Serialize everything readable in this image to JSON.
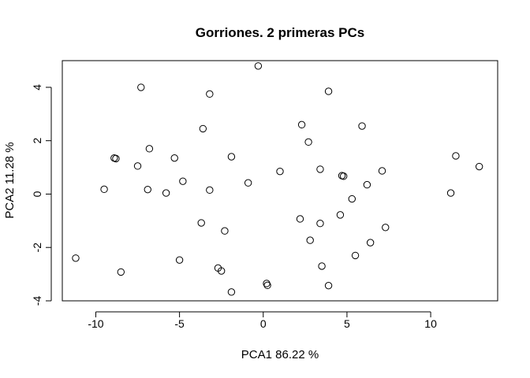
{
  "chart_data": {
    "type": "scatter",
    "title": "Gorriones. 2 primeras PCs",
    "xlabel": "PCA1  86.22 %",
    "ylabel": "PCA2  11.28 %",
    "xlim": [
      -12.0,
      14.0
    ],
    "ylim": [
      -4.0,
      5.0
    ],
    "x_ticks": [
      -10,
      -5,
      0,
      5,
      10
    ],
    "x_tick_labels": [
      "-10",
      "-5",
      "0",
      "5",
      "10"
    ],
    "y_ticks": [
      -4,
      -2,
      0,
      2,
      4
    ],
    "y_tick_labels": [
      "-4",
      "-2",
      "0",
      "2",
      "4"
    ],
    "grid": false,
    "points": [
      {
        "x": -0.3,
        "y": 4.8
      },
      {
        "x": -7.3,
        "y": 4.0
      },
      {
        "x": -3.2,
        "y": 3.75
      },
      {
        "x": 3.9,
        "y": 3.85
      },
      {
        "x": -3.6,
        "y": 2.45
      },
      {
        "x": 2.3,
        "y": 2.6
      },
      {
        "x": 5.9,
        "y": 2.55
      },
      {
        "x": 2.7,
        "y": 1.95
      },
      {
        "x": -6.8,
        "y": 1.7
      },
      {
        "x": -8.9,
        "y": 1.35
      },
      {
        "x": -8.8,
        "y": 1.33
      },
      {
        "x": -5.3,
        "y": 1.35
      },
      {
        "x": -1.9,
        "y": 1.4
      },
      {
        "x": -7.5,
        "y": 1.05
      },
      {
        "x": 1.0,
        "y": 0.85
      },
      {
        "x": 3.4,
        "y": 0.93
      },
      {
        "x": 7.1,
        "y": 0.87
      },
      {
        "x": 4.7,
        "y": 0.69
      },
      {
        "x": 4.8,
        "y": 0.67
      },
      {
        "x": 11.5,
        "y": 1.43
      },
      {
        "x": 12.9,
        "y": 1.03
      },
      {
        "x": -4.8,
        "y": 0.48
      },
      {
        "x": -0.9,
        "y": 0.42
      },
      {
        "x": 6.2,
        "y": 0.35
      },
      {
        "x": -9.5,
        "y": 0.18
      },
      {
        "x": -6.9,
        "y": 0.17
      },
      {
        "x": -3.2,
        "y": 0.15
      },
      {
        "x": -5.8,
        "y": 0.04
      },
      {
        "x": 11.2,
        "y": 0.04
      },
      {
        "x": 5.3,
        "y": -0.18
      },
      {
        "x": 4.6,
        "y": -0.78
      },
      {
        "x": 2.2,
        "y": -0.93
      },
      {
        "x": 3.4,
        "y": -1.1
      },
      {
        "x": -3.7,
        "y": -1.08
      },
      {
        "x": 7.3,
        "y": -1.25
      },
      {
        "x": -2.3,
        "y": -1.38
      },
      {
        "x": 2.8,
        "y": -1.73
      },
      {
        "x": 6.4,
        "y": -1.82
      },
      {
        "x": 5.5,
        "y": -2.3
      },
      {
        "x": -11.2,
        "y": -2.4
      },
      {
        "x": -5.0,
        "y": -2.47
      },
      {
        "x": 3.5,
        "y": -2.7
      },
      {
        "x": -2.7,
        "y": -2.77
      },
      {
        "x": -2.5,
        "y": -2.88
      },
      {
        "x": -8.5,
        "y": -2.92
      },
      {
        "x": 0.2,
        "y": -3.35
      },
      {
        "x": 0.25,
        "y": -3.42
      },
      {
        "x": 3.9,
        "y": -3.43
      },
      {
        "x": -1.9,
        "y": -3.67
      }
    ]
  }
}
